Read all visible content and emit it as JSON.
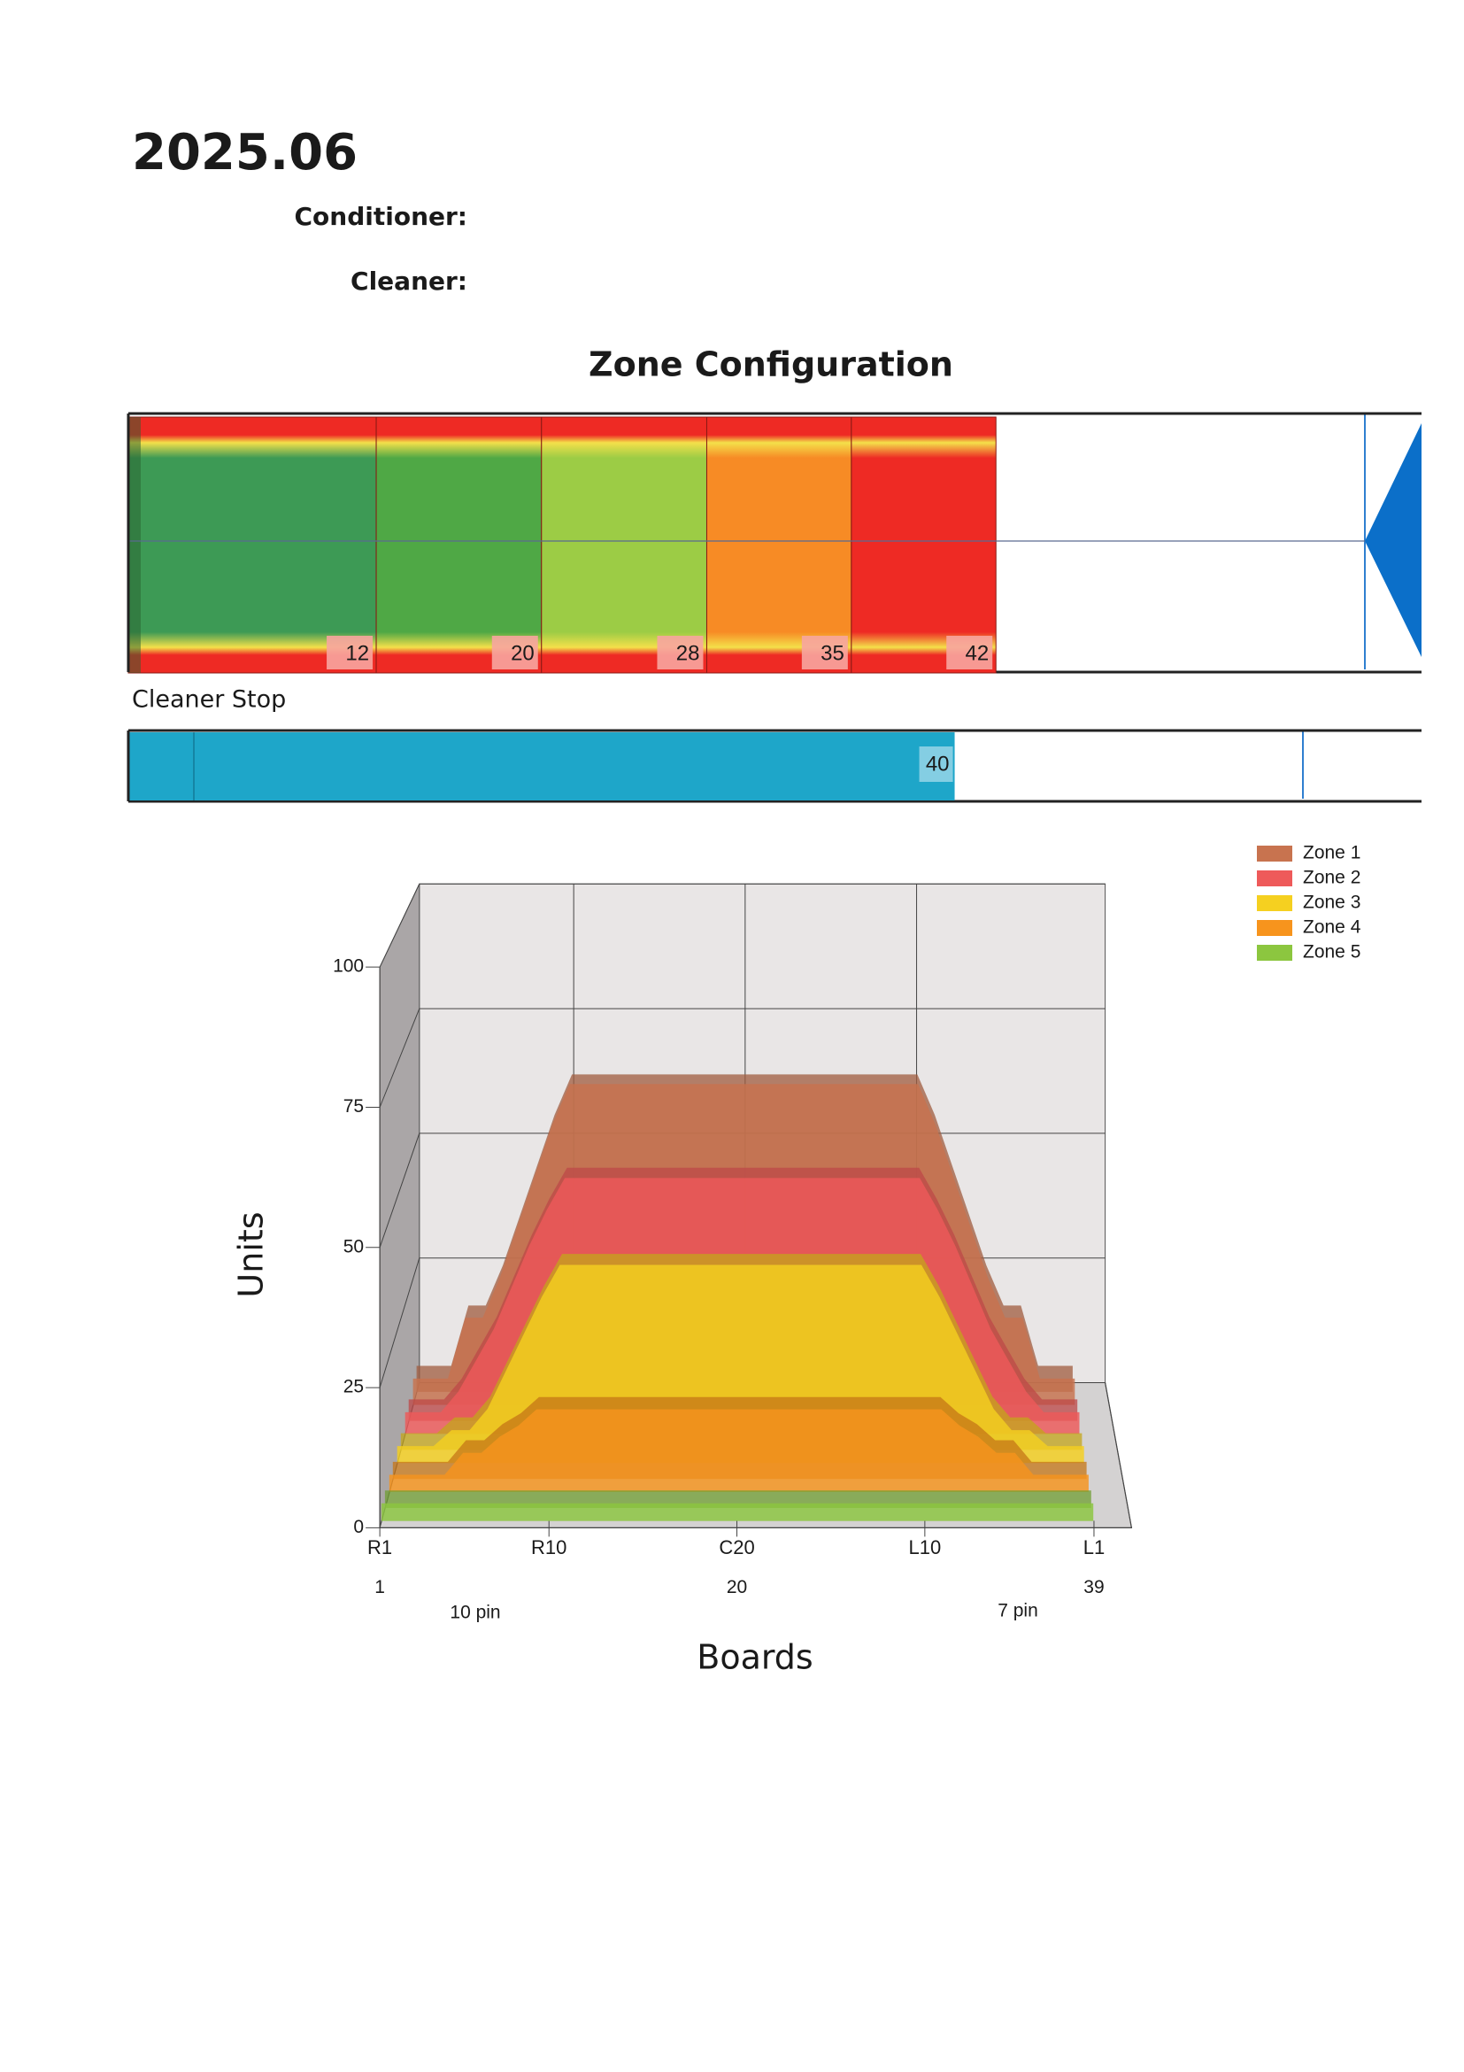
{
  "header": {
    "title": "2025.06",
    "conditioner_label": "Conditioner:",
    "cleaner_label": "Cleaner:"
  },
  "zone_configuration": {
    "title": "Zone Configuration",
    "xlim": [
      0,
      62.6
    ],
    "zones": [
      {
        "end": 12,
        "color": "#3d9a55"
      },
      {
        "end": 20,
        "color": "#4fa845"
      },
      {
        "end": 28,
        "color": "#9ccc45"
      },
      {
        "end": 35,
        "color": "#f78b25"
      },
      {
        "end": 42,
        "color": "#ee2a24"
      }
    ]
  },
  "cleaner_stop": {
    "label": "Cleaner Stop",
    "value": 40,
    "color": "#1ea6c9",
    "xlim": [
      0,
      62.6
    ]
  },
  "chart_data": {
    "type": "area3d",
    "ylabel": "Units",
    "xlabel": "Boards",
    "x": [
      1,
      2,
      3,
      4,
      5,
      6,
      7,
      8,
      9,
      10,
      11,
      12,
      13,
      14,
      15,
      16,
      17,
      18,
      19,
      20,
      21,
      22,
      23,
      24,
      25,
      26,
      27,
      28,
      29,
      30,
      31,
      32,
      33,
      34,
      35,
      36,
      37,
      38,
      39
    ],
    "xlim": [
      1,
      41
    ],
    "xticks": [
      {
        "value": 1,
        "label": "R1"
      },
      {
        "value": 10,
        "label": "R10"
      },
      {
        "value": 20,
        "label": "C20"
      },
      {
        "value": 30,
        "label": "L10"
      },
      {
        "value": 39,
        "label": "L1"
      }
    ],
    "board_numbers": [
      1,
      20,
      39
    ],
    "pin_labels": [
      "10 pin",
      "7 pin"
    ],
    "ylim": [
      0,
      100
    ],
    "yticks": [
      0,
      25,
      50,
      75,
      100
    ],
    "grid": true,
    "legend": "upper right",
    "series": [
      {
        "name": "Zone 1",
        "color": "#c8734f",
        "values": [
          5,
          5,
          5,
          17,
          17,
          25,
          35,
          45,
          55,
          63,
          63,
          63,
          63,
          63,
          63,
          63,
          63,
          63,
          63,
          63,
          63,
          63,
          63,
          63,
          63,
          63,
          63,
          63,
          63,
          63,
          55,
          45,
          35,
          25,
          17,
          17,
          5,
          5,
          5
        ]
      },
      {
        "name": "Zone 2",
        "color": "#ee5a5a",
        "values": [
          4,
          4,
          4,
          8,
          14,
          20,
          28,
          36,
          43,
          49,
          49,
          49,
          49,
          49,
          49,
          49,
          49,
          49,
          49,
          49,
          49,
          49,
          49,
          49,
          49,
          49,
          49,
          49,
          49,
          49,
          43,
          36,
          28,
          20,
          14,
          8,
          4,
          4,
          4
        ]
      },
      {
        "name": "Zone 3",
        "color": "#f5d020",
        "values": [
          3,
          3,
          3,
          6,
          6,
          10,
          17,
          24,
          31,
          37,
          37,
          37,
          37,
          37,
          37,
          37,
          37,
          37,
          37,
          37,
          37,
          37,
          37,
          37,
          37,
          37,
          37,
          37,
          37,
          37,
          31,
          24,
          17,
          10,
          6,
          6,
          3,
          3,
          3
        ]
      },
      {
        "name": "Zone 4",
        "color": "#f7941d",
        "values": [
          3,
          3,
          3,
          3,
          7,
          7,
          10,
          12,
          15,
          15,
          15,
          15,
          15,
          15,
          15,
          15,
          15,
          15,
          15,
          15,
          15,
          15,
          15,
          15,
          15,
          15,
          15,
          15,
          15,
          15,
          15,
          12,
          10,
          7,
          7,
          3,
          3,
          3,
          3
        ]
      },
      {
        "name": "Zone 5",
        "color": "#8cc63f",
        "values": [
          3,
          3,
          3,
          3,
          3,
          3,
          3,
          3,
          3,
          3,
          3,
          3,
          3,
          3,
          3,
          3,
          3,
          3,
          3,
          3,
          3,
          3,
          3,
          3,
          3,
          3,
          3,
          3,
          3,
          3,
          3,
          3,
          3,
          3,
          3,
          3,
          3,
          3,
          3
        ]
      }
    ]
  }
}
